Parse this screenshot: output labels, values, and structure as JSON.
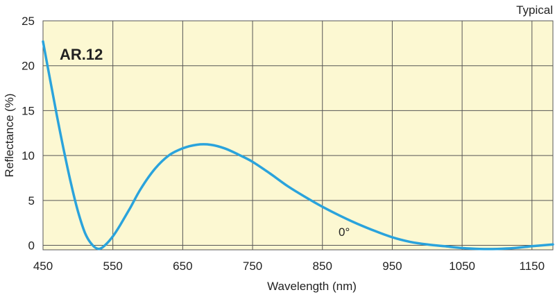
{
  "chart_data": {
    "type": "line",
    "title": "AR.12",
    "corner_label": "Typical",
    "xlabel": "Wavelength (nm)",
    "ylabel": "Reflectance (%)",
    "xlim": [
      450,
      1180
    ],
    "ylim": [
      -0.5,
      25
    ],
    "xticks": [
      450,
      550,
      650,
      750,
      850,
      950,
      1050,
      1150
    ],
    "yticks": [
      0,
      5,
      10,
      15,
      20,
      25
    ],
    "grid": true,
    "background_color": "#fcf8d2",
    "grid_color": "#555555",
    "series": [
      {
        "name": "0°",
        "color": "#2aa3dc",
        "x": [
          450,
          460,
          470,
          480,
          490,
          500,
          510,
          520,
          530,
          540,
          550,
          560,
          575,
          590,
          610,
          630,
          650,
          670,
          690,
          710,
          730,
          750,
          775,
          800,
          825,
          850,
          875,
          900,
          925,
          950,
          975,
          1000,
          1025,
          1050,
          1075,
          1100,
          1125,
          1150,
          1180
        ],
        "y": [
          22.7,
          18.5,
          14.4,
          10.5,
          6.9,
          3.8,
          1.4,
          0.1,
          -0.4,
          0.1,
          1.0,
          2.2,
          4.2,
          6.3,
          8.5,
          10.0,
          10.8,
          11.2,
          11.2,
          10.8,
          10.1,
          9.3,
          8.0,
          6.6,
          5.4,
          4.3,
          3.3,
          2.4,
          1.6,
          0.9,
          0.4,
          0.1,
          -0.1,
          -0.3,
          -0.4,
          -0.4,
          -0.3,
          -0.1,
          0.1
        ]
      }
    ]
  }
}
